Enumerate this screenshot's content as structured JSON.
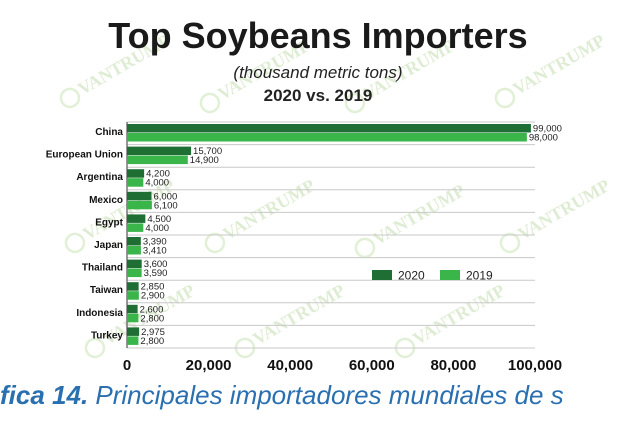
{
  "chart_data": {
    "type": "bar",
    "orientation": "horizontal",
    "title": "Top Soybeans Importers",
    "subtitle": "(thousand metric tons)",
    "subtitle2": "2020 vs. 2019",
    "categories": [
      "China",
      "European Union",
      "Argentina",
      "Mexico",
      "Egypt",
      "Japan",
      "Thailand",
      "Taiwan",
      "Indonesia",
      "Turkey"
    ],
    "series": [
      {
        "name": "2020",
        "color": "#1f6e33",
        "values": [
          99000,
          15700,
          4200,
          6000,
          4500,
          3390,
          3600,
          2850,
          2600,
          2975
        ],
        "labels": [
          "99,000",
          "15,700",
          "4,200",
          "6,000",
          "4,500",
          "3,390",
          "3,600",
          "2,850",
          "2,600",
          "2,975"
        ]
      },
      {
        "name": "2019",
        "color": "#39b54a",
        "values": [
          98000,
          14900,
          4000,
          6100,
          4000,
          3410,
          3590,
          2900,
          2800,
          2800
        ],
        "labels": [
          "98,000",
          "14,900",
          "4,000",
          "6,100",
          "4,000",
          "3,410",
          "3,590",
          "2,900",
          "2,800",
          "2,800"
        ]
      }
    ],
    "xlim": [
      0,
      100000
    ],
    "xticks": [
      0,
      20000,
      40000,
      60000,
      80000,
      100000
    ],
    "xtick_labels": [
      "0",
      "20,000",
      "40,000",
      "60,000",
      "80,000",
      "100,000"
    ],
    "grid": "horizontal separators between categories",
    "legend_position": "lower-right"
  },
  "watermark": {
    "text": "The VANTRUMP Report"
  },
  "caption": {
    "prefix": "fica 14.",
    "text": " Principales importadores mundiales de s"
  }
}
